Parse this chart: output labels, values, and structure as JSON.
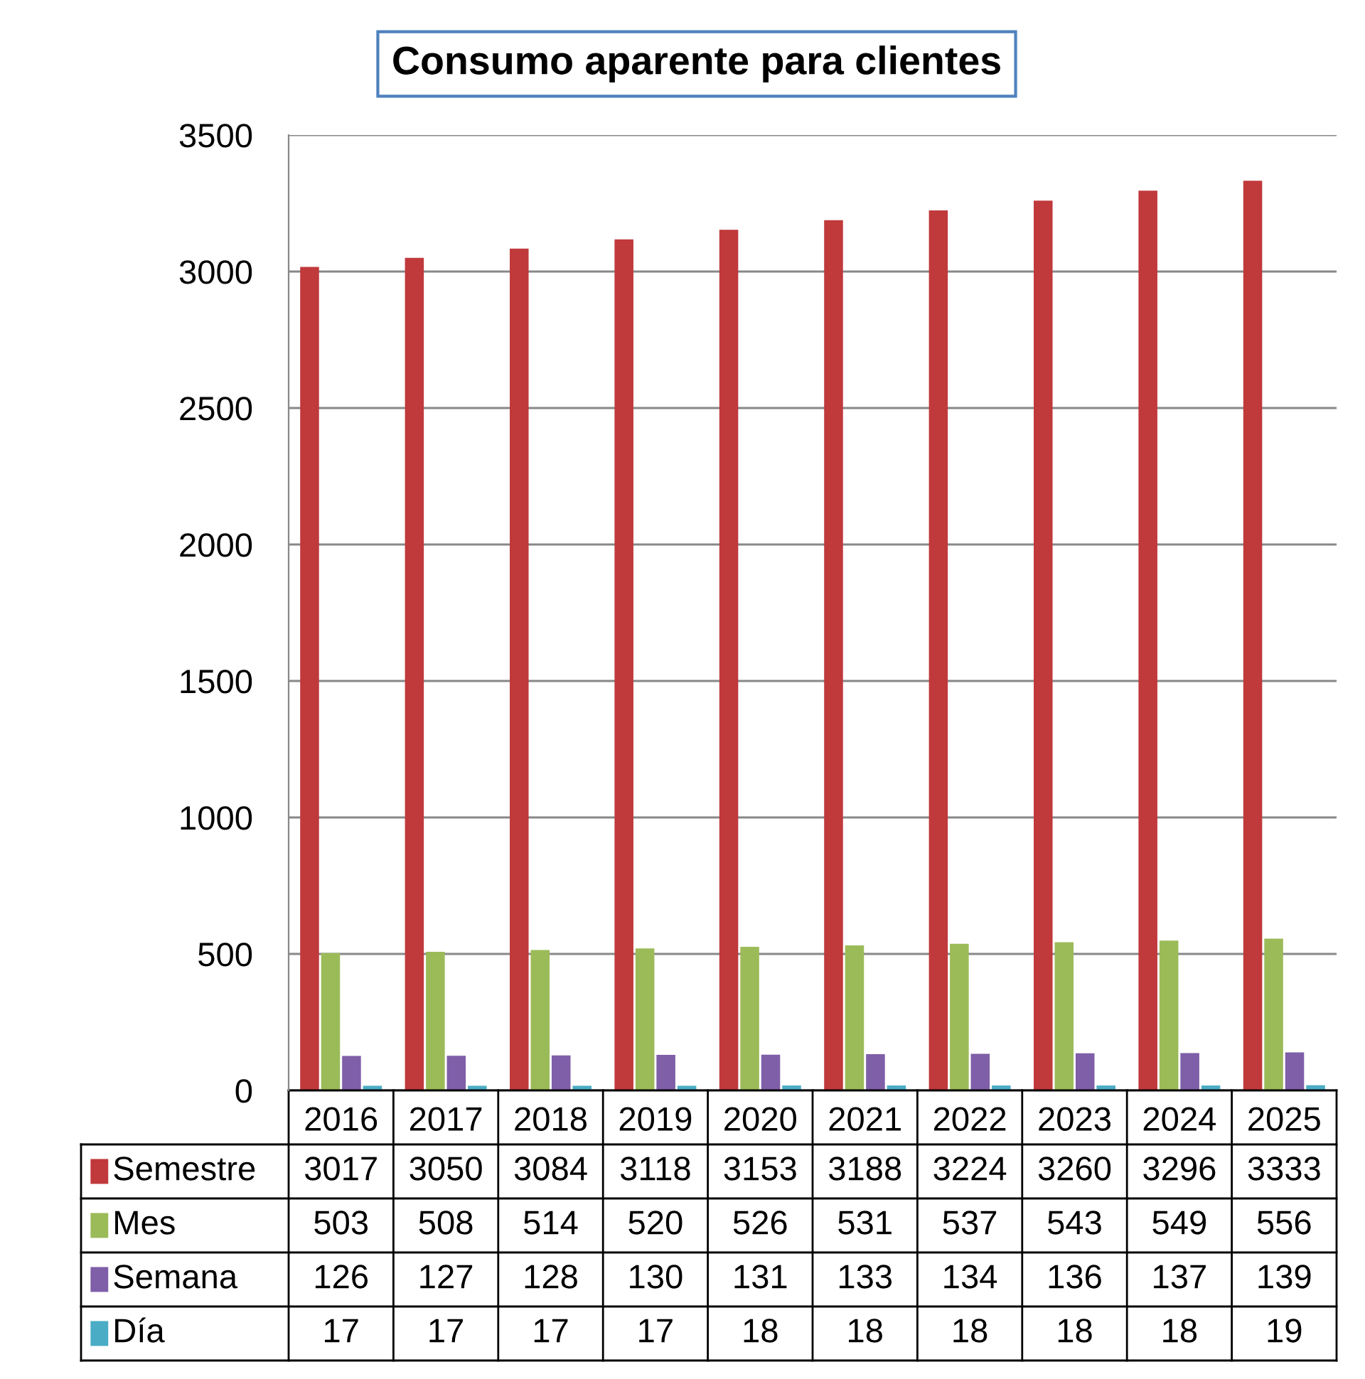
{
  "chart_data": {
    "type": "bar",
    "title": "Consumo aparente para clientes",
    "categories": [
      "2016",
      "2017",
      "2018",
      "2019",
      "2020",
      "2021",
      "2022",
      "2023",
      "2024",
      "2025"
    ],
    "series": [
      {
        "name": "Semestre",
        "color": "#c0393b",
        "values": [
          3017,
          3050,
          3084,
          3118,
          3153,
          3188,
          3224,
          3260,
          3296,
          3333
        ]
      },
      {
        "name": "Mes",
        "color": "#9bbb59",
        "values": [
          503,
          508,
          514,
          520,
          526,
          531,
          537,
          543,
          549,
          556
        ]
      },
      {
        "name": "Semana",
        "color": "#7f5fa8",
        "values": [
          126,
          127,
          128,
          130,
          131,
          133,
          134,
          136,
          137,
          139
        ]
      },
      {
        "name": "Día",
        "color": "#4bacc6",
        "values": [
          17,
          17,
          17,
          17,
          18,
          18,
          18,
          18,
          18,
          19
        ]
      }
    ],
    "ylim": [
      0,
      3500
    ],
    "yticks": [
      0,
      500,
      1000,
      1500,
      2000,
      2500,
      3000,
      3500
    ],
    "grid": "y",
    "data_labels": true,
    "legend": "bottom"
  }
}
